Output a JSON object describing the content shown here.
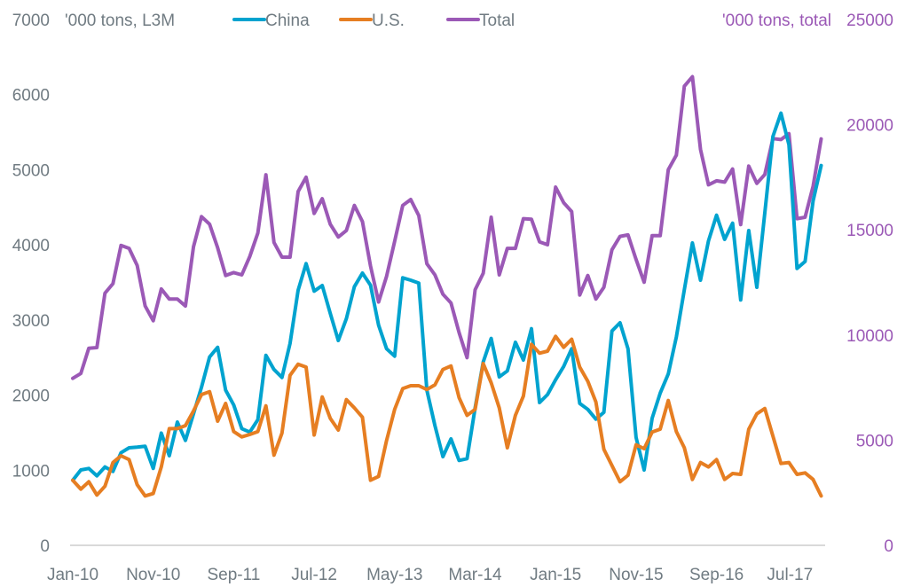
{
  "chart_data": {
    "type": "line",
    "title": "",
    "left_axis_label": "'000 tons, L3M",
    "right_axis_label": "'000 tons, total",
    "ylim_left": [
      0,
      7000
    ],
    "ylim_right": [
      0,
      25000
    ],
    "left_ticks": [
      "0",
      "1000",
      "2000",
      "3000",
      "4000",
      "5000",
      "6000",
      "7000"
    ],
    "right_ticks": [
      "0",
      "5000",
      "10000",
      "15000",
      "20000",
      "25000"
    ],
    "x_start": "Jan-10",
    "x_end": "Oct-17",
    "x_frequency": "monthly",
    "x_tick_labels": [
      "Jan-10",
      "Nov-10",
      "Sep-11",
      "Jul-12",
      "May-13",
      "Mar-14",
      "Jan-15",
      "Nov-15",
      "Sep-16",
      "Jul-17"
    ],
    "grid": false,
    "legend_position": "top",
    "colors": {
      "China": "#00a3cf",
      "U.S.": "#e67e22",
      "Total": "#9b59b6",
      "text": "#707b82",
      "axis": "#d9d9d9"
    },
    "series": [
      {
        "name": "China",
        "axis": "left",
        "values": [
          866,
          1003,
          1023,
          925,
          1043,
          984,
          1232,
          1299,
          1307,
          1318,
          1023,
          1495,
          1192,
          1641,
          1397,
          1751,
          2105,
          2507,
          2636,
          2066,
          1869,
          1554,
          1507,
          1672,
          2530,
          2341,
          2235,
          2688,
          3396,
          3750,
          3384,
          3459,
          3089,
          2727,
          3018,
          3443,
          3624,
          3463,
          2931,
          2617,
          2518,
          3561,
          3530,
          3491,
          2066,
          1594,
          1181,
          1417,
          1130,
          1153,
          1830,
          2440,
          2754,
          2243,
          2322,
          2703,
          2467,
          2884,
          1901,
          2007,
          2204,
          2381,
          2617,
          1889,
          1810,
          1680,
          1771,
          2853,
          2963,
          2617,
          1437,
          1003,
          1692,
          2027,
          2282,
          2774,
          3403,
          4025,
          3530,
          4053,
          4395,
          4073,
          4289,
          3266,
          4191,
          3435,
          4427,
          5442,
          5753,
          5332,
          3687,
          3778,
          4584,
          5056
        ]
      },
      {
        "name": "U.S.",
        "axis": "left",
        "values": [
          866,
          748,
          846,
          669,
          787,
          1102,
          1192,
          1141,
          807,
          657,
          689,
          1043,
          1554,
          1554,
          1594,
          1790,
          2007,
          2046,
          1653,
          1889,
          1515,
          1444,
          1476,
          1515,
          1857,
          1200,
          1495,
          2263,
          2412,
          2373,
          1468,
          1975,
          1692,
          1535,
          1940,
          1830,
          1704,
          866,
          917,
          1397,
          1810,
          2086,
          2125,
          2125,
          2074,
          2137,
          2341,
          2388,
          1967,
          1731,
          1810,
          2420,
          2164,
          1830,
          1299,
          1731,
          1987,
          2676,
          2558,
          2585,
          2782,
          2636,
          2743,
          2373,
          2184,
          1909,
          1279,
          1062,
          846,
          933,
          1338,
          1287,
          1507,
          1546,
          1928,
          1515,
          1299,
          877,
          1102,
          1043,
          1141,
          877,
          956,
          944,
          1546,
          1751,
          1822,
          1456,
          1090,
          1102,
          944,
          964,
          877,
          657
        ]
      },
      {
        "name": "Total",
        "axis": "right",
        "values": [
          7940,
          8170,
          9370,
          9400,
          11990,
          12440,
          14260,
          14120,
          13310,
          11380,
          10680,
          12190,
          11710,
          11710,
          11380,
          14200,
          15630,
          15270,
          14150,
          12830,
          12970,
          12860,
          13730,
          14850,
          17620,
          14400,
          13700,
          13700,
          16820,
          17500,
          15780,
          16480,
          15270,
          14660,
          14970,
          16160,
          15390,
          13280,
          11570,
          12790,
          14450,
          16160,
          16440,
          15680,
          13390,
          12860,
          11940,
          11520,
          10120,
          8920,
          12150,
          12930,
          15600,
          12860,
          14120,
          14120,
          15530,
          15500,
          14430,
          14290,
          17030,
          16290,
          15870,
          11900,
          12830,
          11710,
          12270,
          14050,
          14690,
          14760,
          13590,
          12510,
          14720,
          14720,
          17860,
          18550,
          21830,
          22280,
          18830,
          17140,
          17330,
          17270,
          17890,
          15250,
          18030,
          17210,
          17630,
          19340,
          19290,
          19570,
          15530,
          15600,
          17070,
          19320
        ]
      }
    ]
  }
}
